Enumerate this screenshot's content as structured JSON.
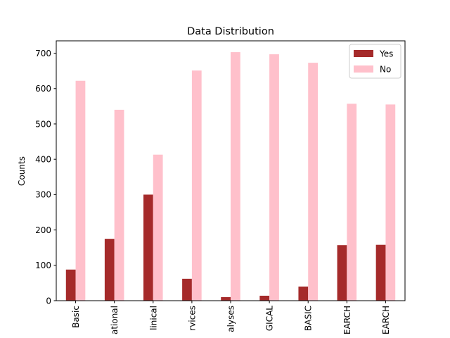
{
  "chart_data": {
    "type": "bar",
    "title": "Data Distribution",
    "xlabel": "",
    "ylabel": "Counts",
    "ylim": [
      0,
      735
    ],
    "yticks": [
      0,
      100,
      200,
      300,
      400,
      500,
      600,
      700
    ],
    "grid": false,
    "legend_position": "top-right",
    "categories": [
      "Basic",
      "ational",
      "linical",
      "rvices",
      "alyses",
      "GICAL",
      "BASIC",
      "EARCH",
      "EARCH"
    ],
    "series": [
      {
        "name": "Yes",
        "color": "#a52a2a",
        "values": [
          88,
          175,
          300,
          62,
          10,
          14,
          40,
          157,
          158
        ]
      },
      {
        "name": "No",
        "color": "#ffc0cb",
        "values": [
          622,
          540,
          413,
          651,
          703,
          697,
          673,
          557,
          555
        ]
      }
    ]
  }
}
